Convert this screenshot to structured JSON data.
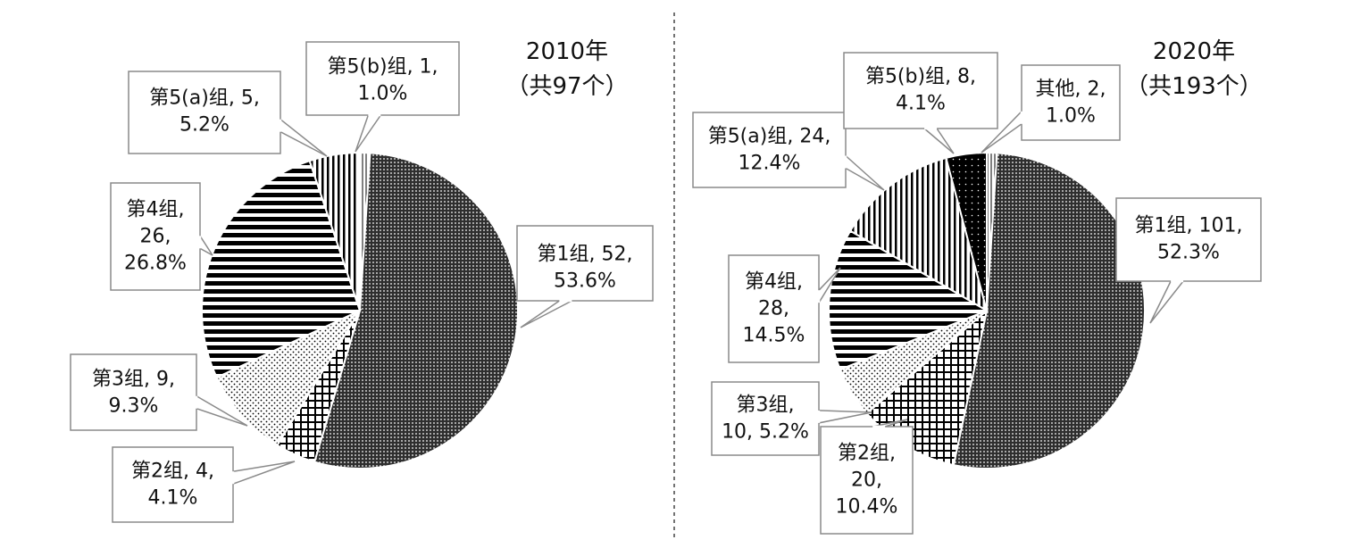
{
  "chart_data": [
    {
      "type": "pie",
      "title": "2010年",
      "subtitle": "（共97个）",
      "slices": [
        {
          "label": "第5(b)组",
          "value": 1,
          "percent": "1.0%",
          "pattern": "p-white",
          "text_lines": [
            "第5(b)组, 1,",
            "1.0%"
          ]
        },
        {
          "label": "第1组",
          "value": 52,
          "percent": "53.6%",
          "pattern": "p-dots",
          "text_lines": [
            "第1组, 52,",
            "53.6%"
          ]
        },
        {
          "label": "第2组",
          "value": 4,
          "percent": "4.1%",
          "pattern": "p-cross",
          "text_lines": [
            "第2组, 4,",
            "4.1%"
          ]
        },
        {
          "label": "第3组",
          "value": 9,
          "percent": "9.3%",
          "pattern": "p-sparse",
          "text_lines": [
            "第3组, 9,",
            "9.3%"
          ]
        },
        {
          "label": "第4组",
          "value": 26,
          "percent": "26.8%",
          "pattern": "p-hlines",
          "text_lines": [
            "第4组,",
            "26,",
            "26.8%"
          ]
        },
        {
          "label": "第5(a)组",
          "value": 5,
          "percent": "5.2%",
          "pattern": "p-vlines",
          "text_lines": [
            "第5(a)组, 5,",
            "5.2%"
          ]
        }
      ]
    },
    {
      "type": "pie",
      "title": "2020年",
      "subtitle": "（共193个）",
      "slices": [
        {
          "label": "其他",
          "value": 2,
          "percent": "1.0%",
          "pattern": "p-white",
          "text_lines": [
            "其他, 2,",
            "1.0%"
          ]
        },
        {
          "label": "第1组",
          "value": 101,
          "percent": "52.3%",
          "pattern": "p-dots",
          "text_lines": [
            "第1组, 101,",
            "52.3%"
          ]
        },
        {
          "label": "第2组",
          "value": 20,
          "percent": "10.4%",
          "pattern": "p-cross",
          "text_lines": [
            "第2组,",
            "20,",
            "10.4%"
          ]
        },
        {
          "label": "第3组",
          "value": 10,
          "percent": "5.2%",
          "pattern": "p-sparse",
          "text_lines": [
            "第3组,",
            "10, 5.2%"
          ]
        },
        {
          "label": "第4组",
          "value": 28,
          "percent": "14.5%",
          "pattern": "p-hlines",
          "text_lines": [
            "第4组,",
            "28,",
            "14.5%"
          ]
        },
        {
          "label": "第5(a)组",
          "value": 24,
          "percent": "12.4%",
          "pattern": "p-vlines",
          "text_lines": [
            "第5(a)组, 24,",
            "12.4%"
          ]
        },
        {
          "label": "第5(b)组",
          "value": 8,
          "percent": "4.1%",
          "pattern": "p-black",
          "text_lines": [
            "第5(b)组, 8,",
            "4.1%"
          ]
        }
      ]
    }
  ]
}
